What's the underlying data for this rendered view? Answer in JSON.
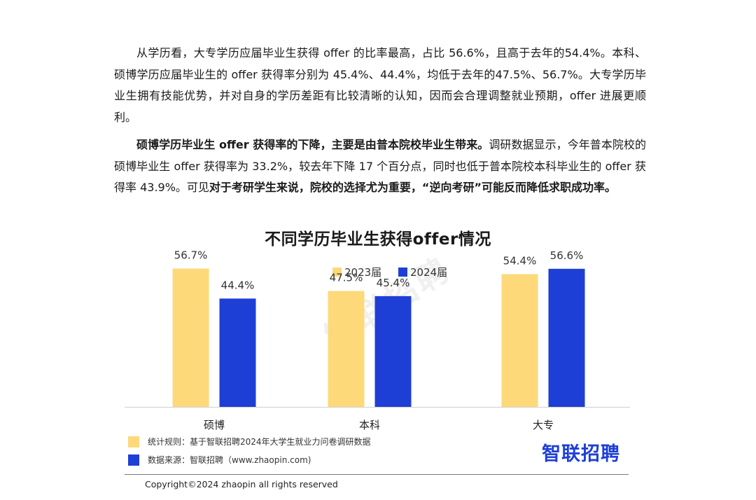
{
  "text": {
    "p1": "从学历看，大专学历应届毕业生获得 offer 的比率最高，占比 56.6%，且高于去年的54.4%。本科、硕博学历应届毕业生的 offer 获得率分别为 45.4%、44.4%，均低于去年的47.5%、56.7%。大专学历毕业生拥有技能优势，并对自身的学历差距有比较清晰的认知，因而会合理调整就业预期，offer 进展更顺利。",
    "p2_bold1": "硕博学历毕业生 offer 获得率的下降，主要是由普本院校毕业生带来。",
    "p2_normal": "调研数据显示，今年普本院校的硕博毕业生 offer 获得率为 33.2%，较去年下降 17 个百分点，同时也低于普本院校本科毕业生的 offer 获得率 43.9%。可见",
    "p2_bold2": "对于考研学生来说，院校的选择尤为重要，“逆向考研”可能反而降低求职成功率。"
  },
  "chart_data": {
    "type": "bar",
    "title": "不同学历毕业生获得offer情况",
    "categories": [
      "硕博",
      "本科",
      "大专"
    ],
    "series": [
      {
        "name": "2023届",
        "values": [
          56.7,
          47.5,
          54.4
        ],
        "labels": [
          "56.7%",
          "47.5%",
          "54.4%"
        ],
        "color": "#fdd97a"
      },
      {
        "name": "2024届",
        "values": [
          44.4,
          45.4,
          56.6
        ],
        "labels": [
          "44.4%",
          "45.4%",
          "56.6%"
        ],
        "color": "#1e3fd6"
      }
    ],
    "ylim": [
      0,
      60
    ],
    "legend": "top-center",
    "grid": false
  },
  "notes": {
    "rule": "统计规则：基于智联招聘2024年大学生就业力问卷调研数据",
    "source": "数据来源：智联招聘（www.zhaopin.com)"
  },
  "brand": "智联招聘",
  "watermark": "智联招聘",
  "copyright": "Copyright©2024 zhaopin all rights reserved"
}
